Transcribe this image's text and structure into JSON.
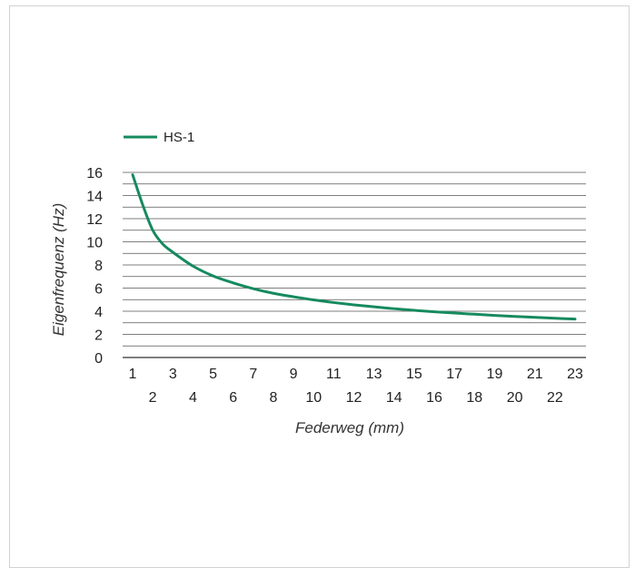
{
  "chart_data": {
    "type": "line",
    "xlabel": "Federweg (mm)",
    "ylabel": "Eigenfrequenz (Hz)",
    "xlim": [
      1,
      23
    ],
    "ylim": [
      0,
      16
    ],
    "x_ticks": [
      1,
      2,
      3,
      4,
      5,
      6,
      7,
      8,
      9,
      10,
      11,
      12,
      13,
      14,
      15,
      16,
      17,
      18,
      19,
      20,
      21,
      22,
      23
    ],
    "y_ticks": [
      0,
      2,
      4,
      6,
      8,
      10,
      12,
      14,
      16
    ],
    "grid": true,
    "legend_position": "top-left",
    "series": [
      {
        "name": "HS-1",
        "color": "#168a5f",
        "x": [
          1,
          1.5,
          2,
          2.5,
          3,
          4,
          5,
          6,
          7,
          8,
          9,
          10,
          11,
          12,
          13,
          14,
          15,
          16,
          17,
          18,
          19,
          20,
          21,
          22,
          23
        ],
        "y": [
          15.8,
          13.2,
          11.0,
          9.8,
          9.1,
          7.9,
          7.05,
          6.45,
          5.95,
          5.55,
          5.25,
          4.98,
          4.75,
          4.55,
          4.38,
          4.22,
          4.08,
          3.95,
          3.84,
          3.74,
          3.64,
          3.55,
          3.47,
          3.39,
          3.32
        ]
      }
    ]
  }
}
